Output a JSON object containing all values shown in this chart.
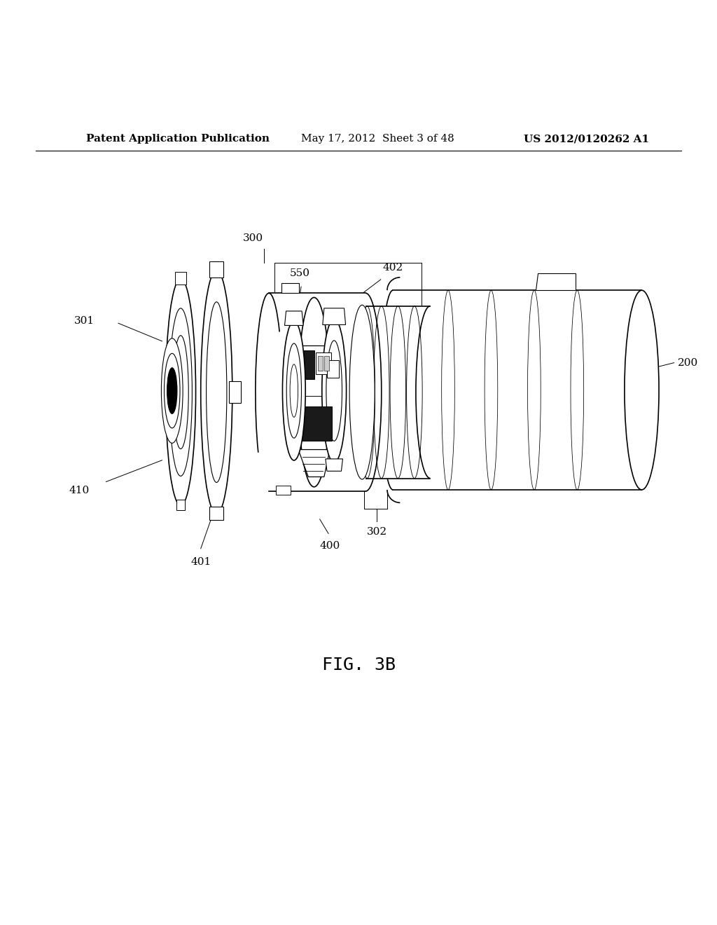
{
  "bg_color": "#ffffff",
  "line_color": "#000000",
  "title_text": "Patent Application Publication",
  "title_date": "May 17, 2012  Sheet 3 of 48",
  "title_patent": "US 2012/0120262 A1",
  "fig_label": "FIG. 3B",
  "header_fontsize": 11,
  "fig_fontsize": 18,
  "label_fontsize": 11
}
